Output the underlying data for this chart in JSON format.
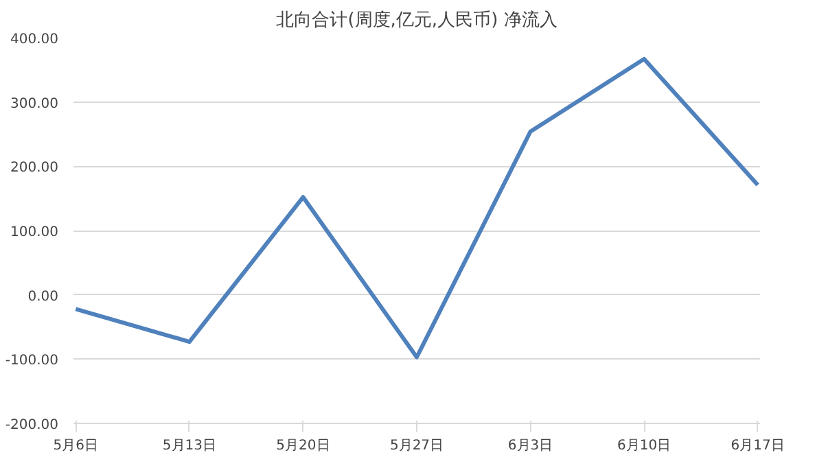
{
  "chart_data": {
    "type": "line",
    "title": "北向合计(周度,亿元,人民币) 净流入",
    "categories": [
      "5月6日",
      "5月13日",
      "5月20日",
      "5月27日",
      "6月3日",
      "6月10日",
      "6月17日"
    ],
    "series": [
      {
        "color": "#4f81bd",
        "values": [
          -22,
          -73,
          152,
          -97,
          254,
          367,
          171
        ]
      }
    ],
    "ylim": [
      -200,
      400
    ],
    "yticks": [
      {
        "value": -200,
        "label": "-200.00"
      },
      {
        "value": -100,
        "label": "-100.00"
      },
      {
        "value": 0,
        "label": "0.00"
      },
      {
        "value": 100,
        "label": "100.00"
      },
      {
        "value": 200,
        "label": "200.00"
      },
      {
        "value": 300,
        "label": "300.00"
      },
      {
        "value": 400,
        "label": "400.00"
      }
    ],
    "grid": "y",
    "marker": "none",
    "line_style": "solid"
  }
}
